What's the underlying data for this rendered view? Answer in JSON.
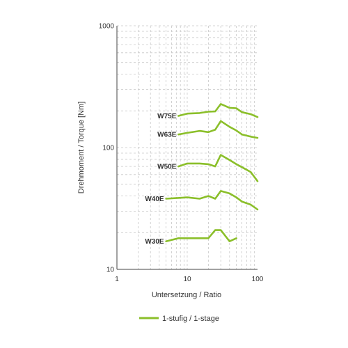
{
  "chart_data": {
    "type": "line",
    "xlabel": "Untersetzung / Ratio",
    "ylabel": "Drehmoment / Torque [Nm]",
    "x_scale": "log",
    "y_scale": "log",
    "xlim": [
      1,
      100
    ],
    "ylim": [
      10,
      1000
    ],
    "x_ticks": [
      "1",
      "10",
      "100"
    ],
    "y_ticks": [
      "10",
      "100",
      "1000"
    ],
    "grid": true,
    "color": "#8bbf2a",
    "legend": {
      "placement": "bottom-center",
      "label": "1-stufig / 1-stage"
    },
    "series": [
      {
        "name": "W75E",
        "points": [
          [
            7.5,
            182
          ],
          [
            10,
            190
          ],
          [
            15,
            192
          ],
          [
            20,
            197
          ],
          [
            25,
            198
          ],
          [
            30,
            228
          ],
          [
            40,
            212
          ],
          [
            50,
            210
          ],
          [
            60,
            195
          ],
          [
            80,
            188
          ],
          [
            100,
            178
          ]
        ]
      },
      {
        "name": "W63E",
        "points": [
          [
            7.5,
            128
          ],
          [
            10,
            132
          ],
          [
            15,
            137
          ],
          [
            20,
            134
          ],
          [
            25,
            140
          ],
          [
            30,
            165
          ],
          [
            40,
            148
          ],
          [
            50,
            138
          ],
          [
            60,
            128
          ],
          [
            80,
            123
          ],
          [
            100,
            120
          ]
        ]
      },
      {
        "name": "W50E",
        "points": [
          [
            7.5,
            70
          ],
          [
            10,
            74
          ],
          [
            15,
            74
          ],
          [
            20,
            73
          ],
          [
            25,
            70
          ],
          [
            30,
            87
          ],
          [
            40,
            79
          ],
          [
            50,
            73
          ],
          [
            60,
            69
          ],
          [
            80,
            63
          ],
          [
            100,
            53
          ]
        ]
      },
      {
        "name": "W40E",
        "points": [
          [
            5,
            38
          ],
          [
            10,
            39
          ],
          [
            15,
            38
          ],
          [
            20,
            40
          ],
          [
            25,
            38
          ],
          [
            30,
            44
          ],
          [
            40,
            42
          ],
          [
            50,
            39
          ],
          [
            60,
            36
          ],
          [
            80,
            34
          ],
          [
            100,
            31
          ]
        ]
      },
      {
        "name": "W30E",
        "points": [
          [
            5,
            17
          ],
          [
            7.5,
            18
          ],
          [
            10,
            18
          ],
          [
            15,
            18
          ],
          [
            20,
            18
          ],
          [
            25,
            21
          ],
          [
            30,
            21
          ],
          [
            40,
            17
          ],
          [
            50,
            18
          ]
        ]
      }
    ]
  }
}
